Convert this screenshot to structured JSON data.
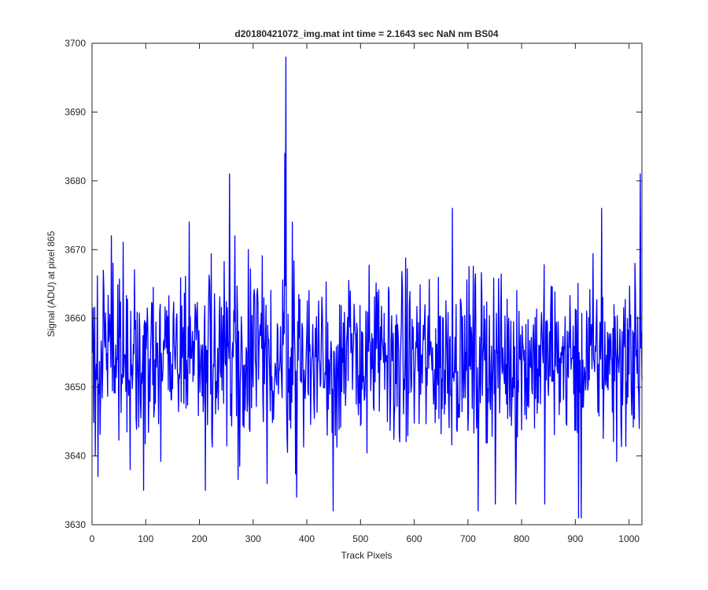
{
  "chart_data": {
    "type": "line",
    "title": "d20180421072_img.mat int time = 2.1643 sec  NaN nm BS04",
    "xlabel": "Track Pixels",
    "ylabel": "Signal (ADU) at pixel 865",
    "xlim": [
      0,
      1024
    ],
    "ylim": [
      3630,
      3700
    ],
    "xticks": [
      0,
      100,
      200,
      300,
      400,
      500,
      600,
      700,
      800,
      900,
      1000
    ],
    "yticks": [
      3630,
      3640,
      3650,
      3660,
      3670,
      3680,
      3690,
      3700
    ],
    "xtick_labels": [
      "0",
      "100",
      "200",
      "300",
      "400",
      "500",
      "600",
      "700",
      "800",
      "900",
      "1000"
    ],
    "ytick_labels": [
      "3630",
      "3640",
      "3650",
      "3660",
      "3670",
      "3680",
      "3690",
      "3700"
    ],
    "grid": false,
    "series": [
      {
        "color": "#0000ff",
        "n_points": 1024,
        "baseline": 3654,
        "noise_amplitude": 6,
        "x": [
          0,
          5,
          10,
          20,
          35,
          70,
          95,
          180,
          210,
          255,
          265,
          290,
          325,
          358,
          360,
          372,
          380,
          448,
          460,
          670,
          718,
          750,
          788,
          842,
          905,
          910,
          948,
          1010,
          1018,
          1020,
          1023
        ],
        "y": [
          3655,
          3640,
          3637,
          3667,
          3672,
          3638,
          3635,
          3674,
          3635,
          3681,
          3672,
          3670,
          3636,
          3684,
          3698,
          3674,
          3634,
          3632,
          3662,
          3676,
          3632,
          3633,
          3633,
          3633,
          3631,
          3631,
          3676,
          3668,
          3644,
          3681,
          3651
        ]
      }
    ]
  }
}
